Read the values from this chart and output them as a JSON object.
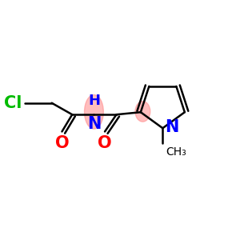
{
  "bg_color": "#ffffff",
  "bond_color": "#000000",
  "bond_lw": 1.8,
  "cl_color": "#00bb00",
  "n_color": "#0000ff",
  "o_color": "#ff0000",
  "highlight_color": "#ff8888",
  "highlight_alpha": 0.55,
  "figsize": [
    3.0,
    3.0
  ],
  "dpi": 100,
  "xlim": [
    0.3,
    3.7
  ],
  "ylim": [
    0.4,
    2.2
  ]
}
